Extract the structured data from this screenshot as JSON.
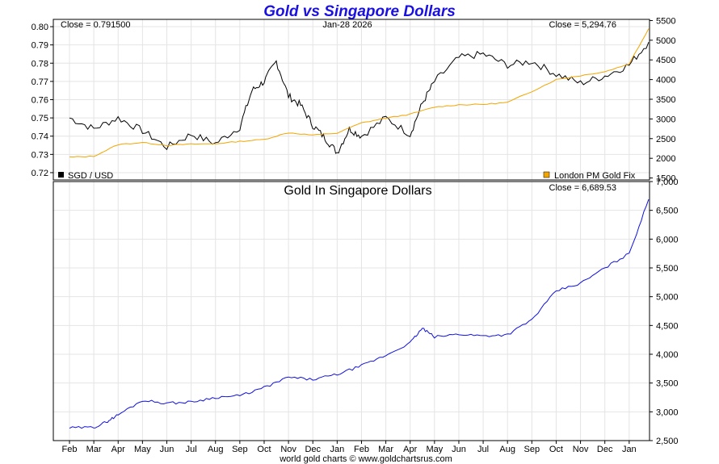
{
  "title": "Gold vs Singapore Dollars",
  "footer": "world gold charts © www.goldchartsrus.com",
  "colors": {
    "title": "#1a10e0",
    "sgd": "#000000",
    "gold_fix": "#f2a500",
    "gold_sgd": "#1010dd",
    "grid": "#e4e4e4"
  },
  "chart_data": [
    {
      "type": "line",
      "title": "",
      "date_label": "Jan-28  2026",
      "left_close_label": "Close = 0.791500",
      "right_close_label": "Close = 5,294.76",
      "left_ticks": [
        "0.72",
        "0.73",
        "0.74",
        "0.75",
        "0.76",
        "0.77",
        "0.78",
        "0.79",
        "0.80"
      ],
      "right_ticks": [
        "1500",
        "2000",
        "2500",
        "3000",
        "3500",
        "4000",
        "4500",
        "5000",
        "5500"
      ],
      "left_ylim": [
        0.716,
        0.804
      ],
      "right_ylim": [
        1450,
        5530
      ],
      "months": [
        "Feb",
        "Mar",
        "Apr",
        "May",
        "Jun",
        "Jul",
        "Aug",
        "Sep",
        "Oct",
        "Nov",
        "Dec",
        "Jan",
        "Feb",
        "Mar",
        "Apr",
        "May",
        "Jun",
        "Jul",
        "Aug",
        "Sep",
        "Oct",
        "Nov",
        "Dec",
        "Jan"
      ],
      "series": [
        {
          "name": "SGD / USD",
          "axis": "left",
          "x": [
            0,
            1,
            2,
            3,
            4,
            5,
            6,
            7,
            7.5,
            8,
            8.5,
            9,
            9.5,
            10,
            10.5,
            11,
            11.5,
            12,
            13,
            14,
            14.5,
            15,
            16,
            17,
            18,
            19,
            20,
            21,
            22,
            23,
            23.8
          ],
          "values": [
            0.75,
            0.744,
            0.75,
            0.743,
            0.734,
            0.741,
            0.736,
            0.745,
            0.765,
            0.77,
            0.781,
            0.762,
            0.757,
            0.746,
            0.739,
            0.731,
            0.744,
            0.74,
            0.75,
            0.741,
            0.758,
            0.77,
            0.783,
            0.785,
            0.779,
            0.781,
            0.774,
            0.769,
            0.773,
            0.779,
            0.7915
          ]
        },
        {
          "name": "London PM Gold Fix",
          "axis": "right",
          "x": [
            0,
            1,
            2,
            3,
            4,
            5,
            6,
            7,
            8,
            9,
            10,
            11,
            12,
            13,
            14,
            15,
            16,
            17,
            18,
            19,
            20,
            21,
            22,
            23,
            23.8
          ],
          "values": [
            2030,
            2050,
            2350,
            2400,
            2330,
            2360,
            2370,
            2430,
            2480,
            2650,
            2590,
            2640,
            2900,
            3020,
            3120,
            3300,
            3360,
            3370,
            3420,
            3700,
            4000,
            4100,
            4200,
            4400,
            5294.76
          ]
        }
      ]
    },
    {
      "type": "line",
      "title": "Gold In Singapore Dollars",
      "right_close_label": "Close = 6,689.53",
      "right_ticks": [
        "2,500",
        "3,000",
        "3,500",
        "4,000",
        "4,500",
        "5,000",
        "5,500",
        "6,000",
        "6,500",
        "7,000"
      ],
      "ylim": [
        2500,
        7000
      ],
      "months": [
        "Feb",
        "Mar",
        "Apr",
        "May",
        "Jun",
        "Jul",
        "Aug",
        "Sep",
        "Oct",
        "Nov",
        "Dec",
        "Jan",
        "Feb",
        "Mar",
        "Apr",
        "May",
        "Jun",
        "Jul",
        "Aug",
        "Sep",
        "Oct",
        "Nov",
        "Dec",
        "Jan"
      ],
      "series": [
        {
          "name": "Gold In Singapore Dollars",
          "x": [
            0,
            1,
            1.5,
            2,
            3,
            4,
            5,
            6,
            7,
            8,
            9,
            10,
            11,
            12,
            13,
            14,
            14.5,
            15,
            16,
            17,
            18,
            19,
            20,
            21,
            22,
            23,
            23.8
          ],
          "values": [
            2720,
            2730,
            2820,
            2950,
            3200,
            3150,
            3170,
            3250,
            3280,
            3420,
            3600,
            3560,
            3650,
            3800,
            3980,
            4200,
            4450,
            4300,
            4350,
            4320,
            4340,
            4600,
            5100,
            5230,
            5500,
            5750,
            6689.53
          ]
        }
      ]
    }
  ],
  "legend": {
    "sgd": "SGD / USD",
    "gold_fix": "London PM Gold Fix"
  }
}
